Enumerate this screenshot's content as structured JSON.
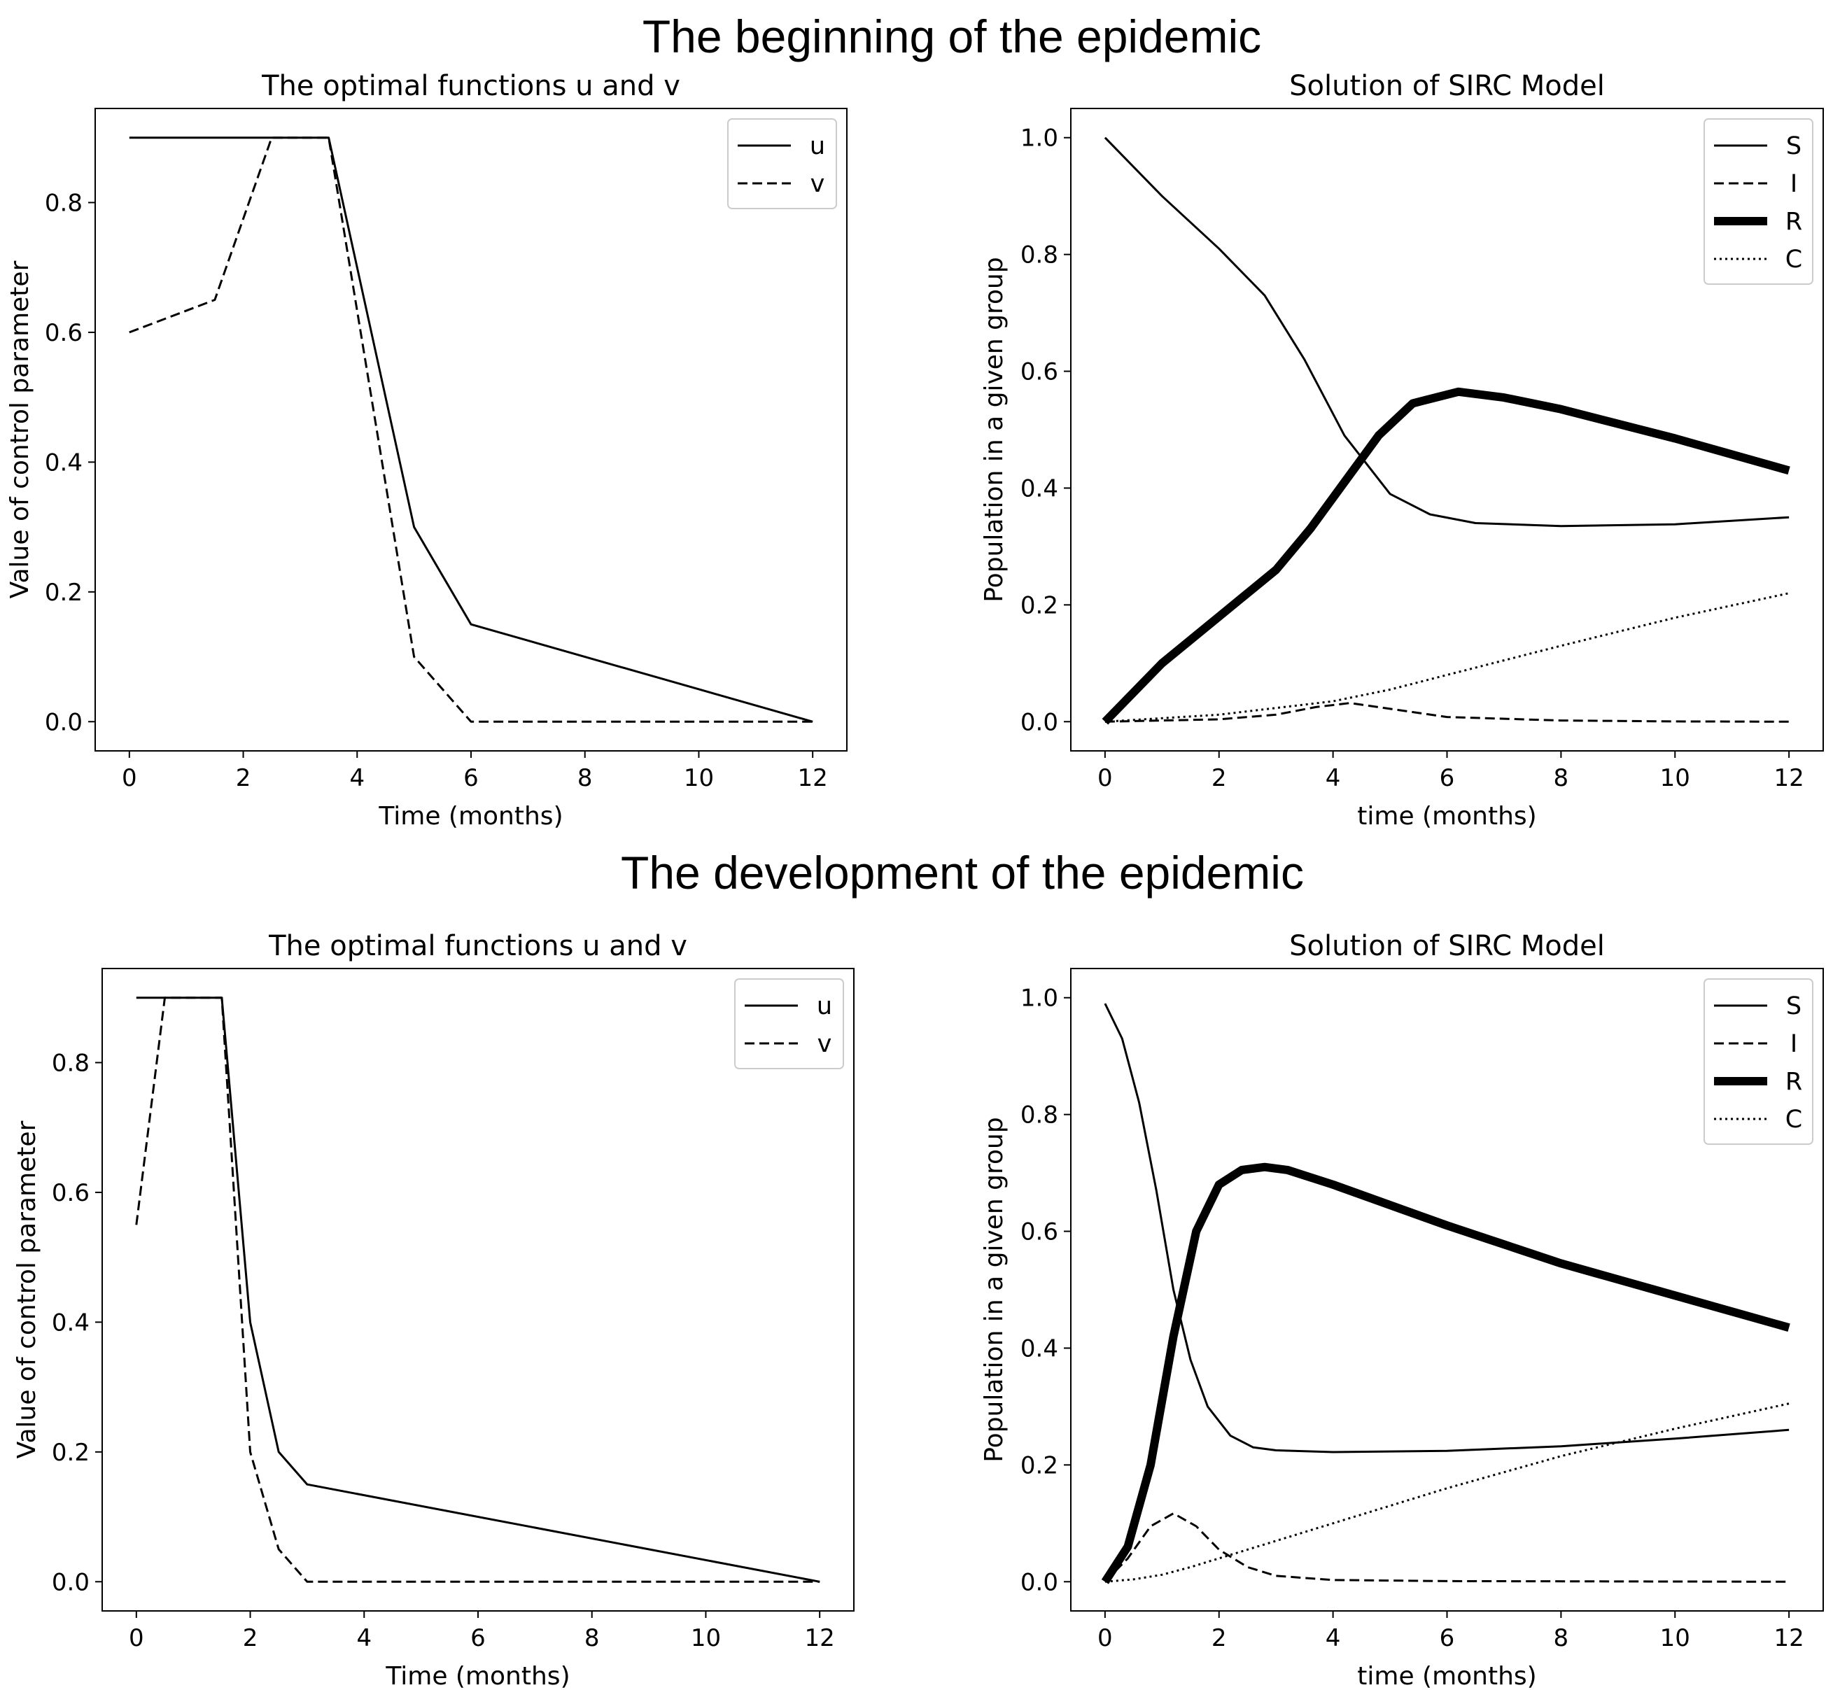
{
  "figure": {
    "sections": [
      {
        "title": "The beginning of the epidemic"
      },
      {
        "title": "The development of the epidemic"
      }
    ]
  },
  "chart_data": [
    {
      "type": "line",
      "title": "The optimal functions u and v",
      "xlabel": "Time (months)",
      "ylabel": "Value of control parameter",
      "xlim": [
        -0.6,
        12.6
      ],
      "ylim": [
        -0.045,
        0.945
      ],
      "xticks": [
        0,
        2,
        4,
        6,
        8,
        10,
        12
      ],
      "yticks": [
        0.0,
        0.2,
        0.4,
        0.6,
        0.8
      ],
      "legend": "top-right",
      "series": [
        {
          "name": "u",
          "style": "solid",
          "width": 3,
          "x": [
            0,
            3.5,
            5,
            6,
            12
          ],
          "y": [
            0.9,
            0.9,
            0.3,
            0.15,
            0.0
          ]
        },
        {
          "name": "v",
          "style": "dashed",
          "width": 3,
          "x": [
            0,
            1.5,
            2.5,
            3.5,
            5,
            6,
            12
          ],
          "y": [
            0.6,
            0.65,
            0.9,
            0.9,
            0.1,
            0.0,
            0.0
          ]
        }
      ]
    },
    {
      "type": "line",
      "title": "Solution of SIRC Model",
      "xlabel": "time (months)",
      "ylabel": "Population in a given group",
      "xlim": [
        -0.6,
        12.6
      ],
      "ylim": [
        -0.05,
        1.05
      ],
      "xticks": [
        0,
        2,
        4,
        6,
        8,
        10,
        12
      ],
      "yticks": [
        0.0,
        0.2,
        0.4,
        0.6,
        0.8,
        1.0
      ],
      "legend": "top-right",
      "series": [
        {
          "name": "S",
          "style": "solid",
          "width": 3,
          "x": [
            0,
            1,
            2,
            2.8,
            3.5,
            4.2,
            5,
            5.7,
            6.5,
            8,
            10,
            12
          ],
          "y": [
            1.0,
            0.9,
            0.81,
            0.73,
            0.62,
            0.49,
            0.39,
            0.355,
            0.34,
            0.335,
            0.338,
            0.35
          ]
        },
        {
          "name": "I",
          "style": "dashed",
          "width": 3,
          "x": [
            0,
            2,
            3,
            3.7,
            4.3,
            5,
            6,
            8,
            10,
            12
          ],
          "y": [
            0.0,
            0.004,
            0.012,
            0.025,
            0.032,
            0.022,
            0.008,
            0.002,
            0.0005,
            0.0
          ]
        },
        {
          "name": "R",
          "style": "solid",
          "width": 12,
          "x": [
            0,
            1,
            2,
            3,
            3.6,
            4.2,
            4.8,
            5.4,
            6.2,
            7,
            8,
            10,
            12
          ],
          "y": [
            0.0,
            0.1,
            0.18,
            0.26,
            0.33,
            0.41,
            0.49,
            0.545,
            0.565,
            0.555,
            0.535,
            0.485,
            0.43
          ]
        },
        {
          "name": "C",
          "style": "dotted",
          "width": 3,
          "x": [
            0,
            2,
            4,
            5,
            6,
            8,
            10,
            12
          ],
          "y": [
            0.0,
            0.012,
            0.035,
            0.055,
            0.08,
            0.13,
            0.178,
            0.22
          ]
        }
      ]
    },
    {
      "type": "line",
      "title": "The optimal functions u and v",
      "xlabel": "Time (months)",
      "ylabel": "Value of control parameter",
      "xlim": [
        -0.6,
        12.6
      ],
      "ylim": [
        -0.045,
        0.945
      ],
      "xticks": [
        0,
        2,
        4,
        6,
        8,
        10,
        12
      ],
      "yticks": [
        0.0,
        0.2,
        0.4,
        0.6,
        0.8
      ],
      "legend": "top-right",
      "series": [
        {
          "name": "u",
          "style": "solid",
          "width": 3,
          "x": [
            0,
            1.5,
            2,
            2.5,
            3,
            12
          ],
          "y": [
            0.9,
            0.9,
            0.4,
            0.2,
            0.15,
            0.0
          ]
        },
        {
          "name": "v",
          "style": "dashed",
          "width": 3,
          "x": [
            0,
            0.5,
            1.5,
            2,
            2.5,
            3,
            12
          ],
          "y": [
            0.55,
            0.9,
            0.9,
            0.2,
            0.05,
            0.0,
            0.0
          ]
        }
      ]
    },
    {
      "type": "line",
      "title": "Solution of SIRC Model",
      "xlabel": "time (months)",
      "ylabel": "Population in a given group",
      "xlim": [
        -0.6,
        12.6
      ],
      "ylim": [
        -0.05,
        1.05
      ],
      "xticks": [
        0,
        2,
        4,
        6,
        8,
        10,
        12
      ],
      "yticks": [
        0.0,
        0.2,
        0.4,
        0.6,
        0.8,
        1.0
      ],
      "legend": "top-right",
      "series": [
        {
          "name": "S",
          "style": "solid",
          "width": 3,
          "x": [
            0,
            0.3,
            0.6,
            0.9,
            1.2,
            1.5,
            1.8,
            2.2,
            2.6,
            3,
            4,
            6,
            8,
            10,
            12
          ],
          "y": [
            0.99,
            0.93,
            0.82,
            0.67,
            0.5,
            0.38,
            0.3,
            0.25,
            0.23,
            0.225,
            0.222,
            0.224,
            0.232,
            0.245,
            0.26
          ]
        },
        {
          "name": "I",
          "style": "dashed",
          "width": 3,
          "x": [
            0,
            0.4,
            0.8,
            1.2,
            1.6,
            2,
            2.5,
            3,
            4,
            6,
            12
          ],
          "y": [
            0.0,
            0.04,
            0.095,
            0.117,
            0.095,
            0.055,
            0.025,
            0.01,
            0.003,
            0.001,
            0.0
          ]
        },
        {
          "name": "R",
          "style": "solid",
          "width": 12,
          "x": [
            0,
            0.4,
            0.8,
            1.2,
            1.6,
            2,
            2.4,
            2.8,
            3.2,
            4,
            6,
            8,
            10,
            12
          ],
          "y": [
            0.0,
            0.06,
            0.2,
            0.42,
            0.6,
            0.68,
            0.705,
            0.71,
            0.705,
            0.68,
            0.61,
            0.545,
            0.49,
            0.435
          ]
        },
        {
          "name": "C",
          "style": "dotted",
          "width": 3,
          "x": [
            0,
            0.5,
            1,
            1.5,
            2,
            3,
            4,
            6,
            8,
            10,
            12
          ],
          "y": [
            0.0,
            0.004,
            0.012,
            0.025,
            0.04,
            0.07,
            0.1,
            0.16,
            0.215,
            0.262,
            0.305
          ]
        }
      ]
    }
  ]
}
